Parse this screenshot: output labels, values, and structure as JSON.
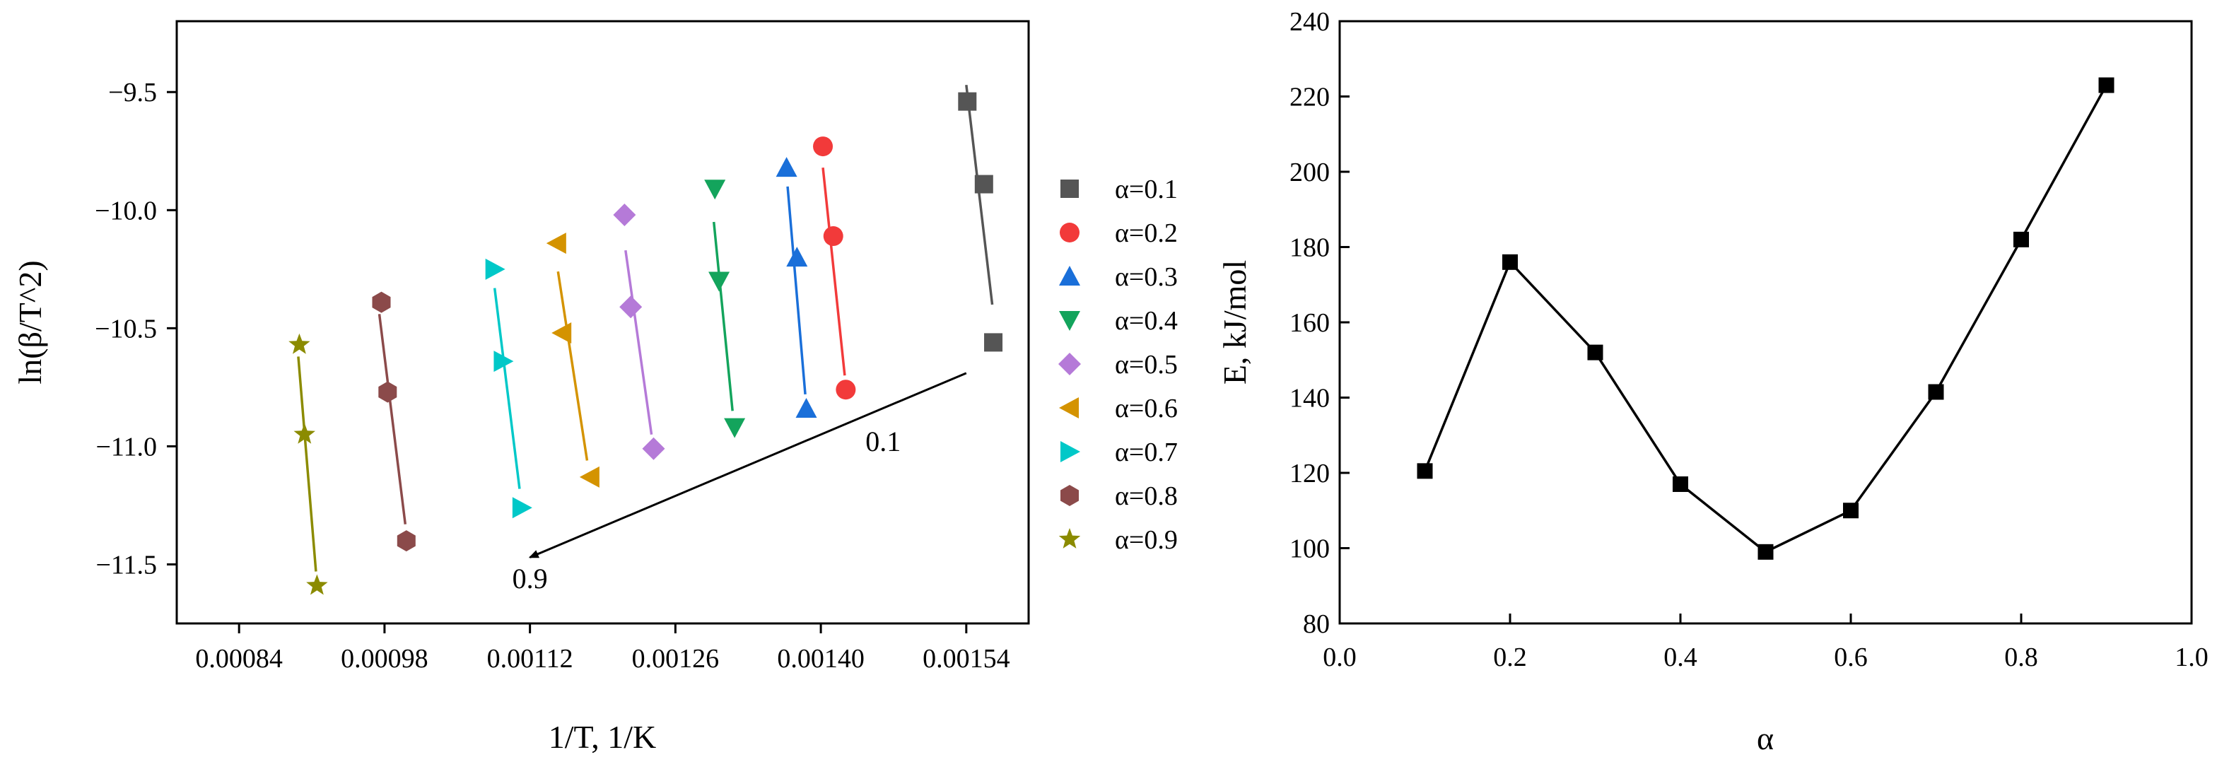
{
  "chart_data": [
    {
      "type": "scatter",
      "title": "",
      "xlabel": "1/T, 1/K",
      "ylabel": "ln(β/T^2)",
      "xlim": [
        0.00078,
        0.0016
      ],
      "ylim": [
        -11.75,
        -9.2
      ],
      "xticks": [
        0.00084,
        0.00098,
        0.00112,
        0.00126,
        0.0014,
        0.00154
      ],
      "xtick_labels": [
        "0.00084",
        "0.00098",
        "0.00112",
        "0.00126",
        "0.00140",
        "0.00154"
      ],
      "yticks": [
        -11.5,
        -11.0,
        -10.5,
        -10.0,
        -9.5
      ],
      "ytick_labels": [
        "−11.5",
        "−11.0",
        "−10.5",
        "−10.0",
        "−9.5"
      ],
      "legend_position": "right",
      "series": [
        {
          "name": "α=0.1",
          "color": "#555555",
          "marker": "square",
          "x": [
            0.001541,
            0.001557,
            0.001566
          ],
          "y": [
            -9.54,
            -9.89,
            -10.56
          ],
          "fit": [
            [
              0.00154,
              -9.47
            ],
            [
              0.001565,
              -10.4
            ]
          ]
        },
        {
          "name": "α=0.2",
          "color": "#f23a3a",
          "marker": "circle",
          "x": [
            0.001402,
            0.001412,
            0.001424
          ],
          "y": [
            -9.73,
            -10.11,
            -10.76
          ],
          "fit": [
            [
              0.001402,
              -9.82
            ],
            [
              0.001423,
              -10.7
            ]
          ]
        },
        {
          "name": "α=0.3",
          "color": "#1a6fd9",
          "marker": "triangle-up",
          "x": [
            0.001367,
            0.001377,
            0.001386
          ],
          "y": [
            -9.82,
            -10.2,
            -10.84
          ],
          "fit": [
            [
              0.001368,
              -9.9
            ],
            [
              0.001385,
              -10.78
            ]
          ]
        },
        {
          "name": "α=0.4",
          "color": "#13a45c",
          "marker": "triangle-down",
          "x": [
            0.001298,
            0.001302,
            0.001317
          ],
          "y": [
            -9.91,
            -10.3,
            -10.92
          ],
          "fit": [
            [
              0.001297,
              -10.05
            ],
            [
              0.001315,
              -10.85
            ]
          ]
        },
        {
          "name": "α=0.5",
          "color": "#b57ad8",
          "marker": "diamond",
          "x": [
            0.001211,
            0.001217,
            0.001239
          ],
          "y": [
            -10.02,
            -10.41,
            -11.01
          ],
          "fit": [
            [
              0.001212,
              -10.17
            ],
            [
              0.001237,
              -10.95
            ]
          ]
        },
        {
          "name": "α=0.6",
          "color": "#d49300",
          "marker": "triangle-left",
          "x": [
            0.001146,
            0.001151,
            0.001178
          ],
          "y": [
            -10.14,
            -10.52,
            -11.13
          ],
          "fit": [
            [
              0.001147,
              -10.26
            ],
            [
              0.001175,
              -11.06
            ]
          ]
        },
        {
          "name": "α=0.7",
          "color": "#00c8c8",
          "marker": "triangle-right",
          "x": [
            0.001086,
            0.001094,
            0.001112
          ],
          "y": [
            -10.25,
            -10.64,
            -11.26
          ],
          "fit": [
            [
              0.001086,
              -10.33
            ],
            [
              0.00111,
              -11.18
            ]
          ]
        },
        {
          "name": "α=0.8",
          "color": "#8b4a4a",
          "marker": "hexagon",
          "x": [
            0.000977,
            0.000983,
            0.001001
          ],
          "y": [
            -10.39,
            -10.77,
            -11.4
          ],
          "fit": [
            [
              0.000975,
              -10.44
            ],
            [
              0.001,
              -11.33
            ]
          ]
        },
        {
          "name": "α=0.9",
          "color": "#8b8b00",
          "marker": "star",
          "x": [
            0.000898,
            0.000903,
            0.000915
          ],
          "y": [
            -10.57,
            -10.95,
            -11.59
          ],
          "fit": [
            [
              0.000897,
              -10.62
            ],
            [
              0.000914,
              -11.53
            ]
          ]
        }
      ],
      "annotations": [
        {
          "text": "0.1",
          "x": 0.00146,
          "y": -11.02
        },
        {
          "text": "0.9",
          "x": 0.00112,
          "y": -11.6
        }
      ],
      "arrow": {
        "from": [
          0.00154,
          -10.69
        ],
        "to": [
          0.00112,
          -11.47
        ],
        "color": "#000000"
      }
    },
    {
      "type": "line",
      "title": "",
      "xlabel": "α",
      "ylabel": "E, kJ/mol",
      "xlim": [
        0,
        1
      ],
      "ylim": [
        80,
        240
      ],
      "xticks": [
        0,
        0.2,
        0.4,
        0.6,
        0.8,
        1.0
      ],
      "xtick_labels": [
        "0.0",
        "0.2",
        "0.4",
        "0.6",
        "0.8",
        "1.0"
      ],
      "yticks": [
        80,
        100,
        120,
        140,
        160,
        180,
        200,
        220,
        240
      ],
      "ytick_labels": [
        "80",
        "100",
        "120",
        "140",
        "160",
        "180",
        "200",
        "220",
        "240"
      ],
      "grid": false,
      "series": [
        {
          "name": "E",
          "color": "#000000",
          "marker": "square",
          "x": [
            0.1,
            0.2,
            0.3,
            0.4,
            0.5,
            0.6,
            0.7,
            0.8,
            0.9
          ],
          "y": [
            120.5,
            176,
            152,
            117,
            99,
            110,
            141.5,
            182,
            223
          ]
        }
      ]
    }
  ]
}
